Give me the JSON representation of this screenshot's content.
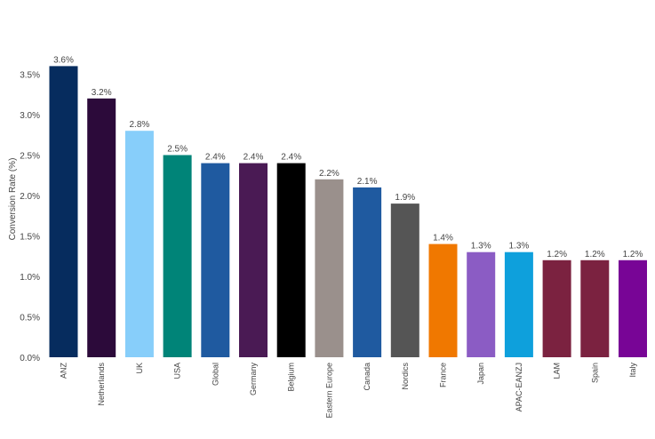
{
  "chart_data": {
    "type": "bar",
    "ylabel": "Conversion Rate (%)",
    "ylim": [
      0,
      3.6
    ],
    "yticks": [
      0.0,
      0.5,
      1.0,
      1.5,
      2.0,
      2.5,
      3.0,
      3.5
    ],
    "ytick_labels": [
      "0.0%",
      "0.5%",
      "1.0%",
      "1.5%",
      "2.0%",
      "2.5%",
      "3.0%",
      "3.5%"
    ],
    "grid": false,
    "categories": [
      "ANZ",
      "Netherlands",
      "UK",
      "USA",
      "Global",
      "Germany",
      "Belgium",
      "Eastern Europe",
      "Canada",
      "Nordics",
      "France",
      "Japan",
      "APAC-EANZJ",
      "LAM",
      "Spain",
      "Italy"
    ],
    "values": [
      3.6,
      3.2,
      2.8,
      2.5,
      2.4,
      2.4,
      2.4,
      2.2,
      2.1,
      1.9,
      1.4,
      1.3,
      1.3,
      1.2,
      1.2,
      1.2
    ],
    "value_labels": [
      "3.6%",
      "3.2%",
      "2.8%",
      "2.5%",
      "2.4%",
      "2.4%",
      "2.4%",
      "2.2%",
      "2.1%",
      "1.9%",
      "1.4%",
      "1.3%",
      "1.3%",
      "1.2%",
      "1.2%",
      "1.2%"
    ],
    "colors": [
      "#062c5e",
      "#2c0a3a",
      "#87cefa",
      "#008478",
      "#1f5aa0",
      "#4a1a54",
      "#000000",
      "#9a908c",
      "#1f5aa0",
      "#555555",
      "#f07800",
      "#8b5cc4",
      "#0ea0dc",
      "#7b2240",
      "#7b2240",
      "#780596"
    ]
  }
}
